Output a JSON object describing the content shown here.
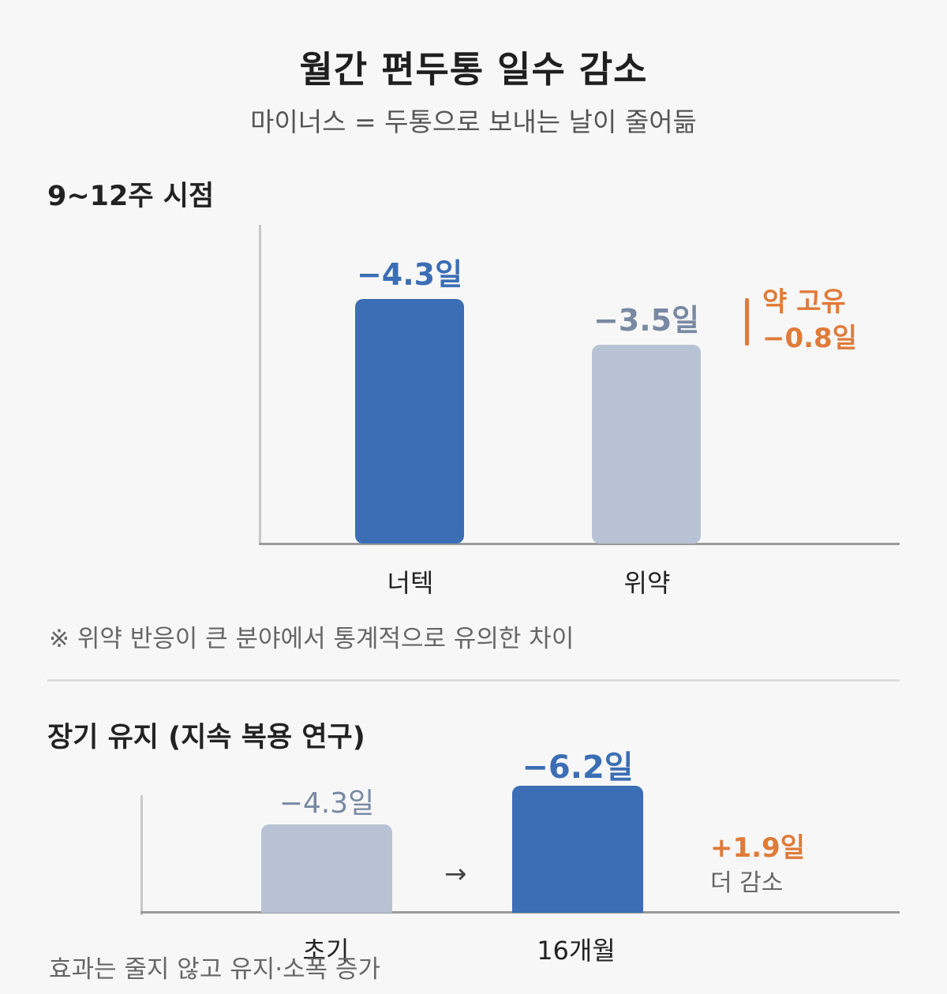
{
  "header": {
    "title": "월간 편두통 일수 감소",
    "subtitle": "마이너스 = 두통으로 보내는 날이 줄어듦"
  },
  "colors": {
    "primary": "#3b6eb4",
    "muted": "#b7c3d4",
    "muted_label": "#7889a3",
    "accent": "#e07b39"
  },
  "chart_data": [
    {
      "type": "bar",
      "title": "9~12주 시점",
      "categories": [
        "너텍",
        "위약"
      ],
      "values": [
        -4.3,
        -3.5
      ],
      "value_labels": [
        "−4.3일",
        "−3.5일"
      ],
      "annotation": {
        "line1": "약 고유",
        "line2": "−0.8일"
      },
      "note": "※ 위약 반응이 큰 분야에서 통계적으로 유의한 차이"
    },
    {
      "type": "bar",
      "title": "장기 유지 (지속 복용 연구)",
      "categories": [
        "초기",
        "16개월"
      ],
      "values": [
        -4.3,
        -6.2
      ],
      "value_labels": [
        "−4.3일",
        "−6.2일"
      ],
      "arrow": "→",
      "annotation": {
        "line1": "+1.9일",
        "line2": "더 감소"
      },
      "note": "효과는 줄지 않고 유지·소폭 증가"
    }
  ]
}
